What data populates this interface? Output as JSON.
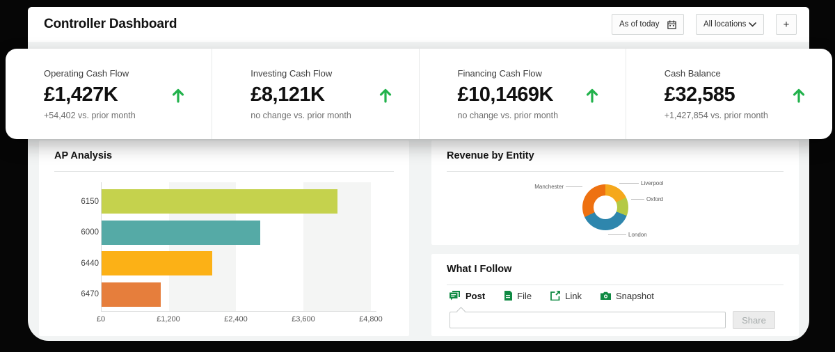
{
  "header": {
    "title": "Controller Dashboard",
    "date_filter_label": "As of today",
    "location_filter_label": "All locations",
    "add_button_label": "+"
  },
  "kpis": [
    {
      "label": "Operating Cash Flow",
      "value": "£1,427K",
      "delta": "+54,402 vs. prior month",
      "trend": "up"
    },
    {
      "label": "Investing Cash Flow",
      "value": "£8,121K",
      "delta": "no change vs. prior month",
      "trend": "up"
    },
    {
      "label": "Financing Cash Flow",
      "value": "£10,1469K",
      "delta": "no change vs. prior month",
      "trend": "up"
    },
    {
      "label": "Cash Balance",
      "value": "£32,585",
      "delta": "+1,427,854 vs. prior month",
      "trend": "up"
    }
  ],
  "charts": {
    "ap": {
      "type": "bar",
      "orientation": "horizontal",
      "title": "AP Analysis",
      "categories": [
        "6150",
        "6000",
        "6440",
        "6470"
      ],
      "values": [
        4200,
        2830,
        1970,
        1050
      ],
      "colors": [
        "#c5d24d",
        "#55aaa6",
        "#fcb116",
        "#e67e3c"
      ],
      "xmax": 4900,
      "xticks": [
        {
          "label": "£0",
          "value": 0
        },
        {
          "label": "£1,200",
          "value": 1200
        },
        {
          "label": "£2,400",
          "value": 2400
        },
        {
          "label": "£3,600",
          "value": 3600
        },
        {
          "label": "£4,800",
          "value": 4800
        }
      ],
      "stripe_segments": [
        [
          1200,
          2400
        ],
        [
          3600,
          4800
        ]
      ],
      "grid": "alternating-bands",
      "legend": "none"
    },
    "revenue": {
      "type": "pie",
      "title": "Revenue by Entity",
      "slices": [
        {
          "label": "Liverpool",
          "value": 18,
          "color": "#f5a81c"
        },
        {
          "label": "Oxford",
          "value": 13,
          "color": "#b4c944"
        },
        {
          "label": "London",
          "value": 37,
          "color": "#2e86ad"
        },
        {
          "label": "Manchester",
          "value": 32,
          "color": "#ee7111"
        }
      ],
      "start_angle_deg": 0,
      "legend": "outside-labels-with-leader-lines"
    }
  },
  "follow": {
    "title": "What I Follow",
    "tabs": [
      {
        "label": "Post",
        "icon": "chat-icon",
        "active": true
      },
      {
        "label": "File",
        "icon": "file-icon",
        "active": false
      },
      {
        "label": "Link",
        "icon": "external-link-icon",
        "active": false
      },
      {
        "label": "Snapshot",
        "icon": "camera-icon",
        "active": false
      }
    ],
    "composer_value": "",
    "composer_placeholder": "",
    "share_button_label": "Share"
  },
  "colors": {
    "trend_up_green": "#22b24c",
    "tab_icon_green": "#0f8a43",
    "page_background": "#060606",
    "panel_background": "#f2f4f4",
    "card_background": "#ffffff"
  }
}
